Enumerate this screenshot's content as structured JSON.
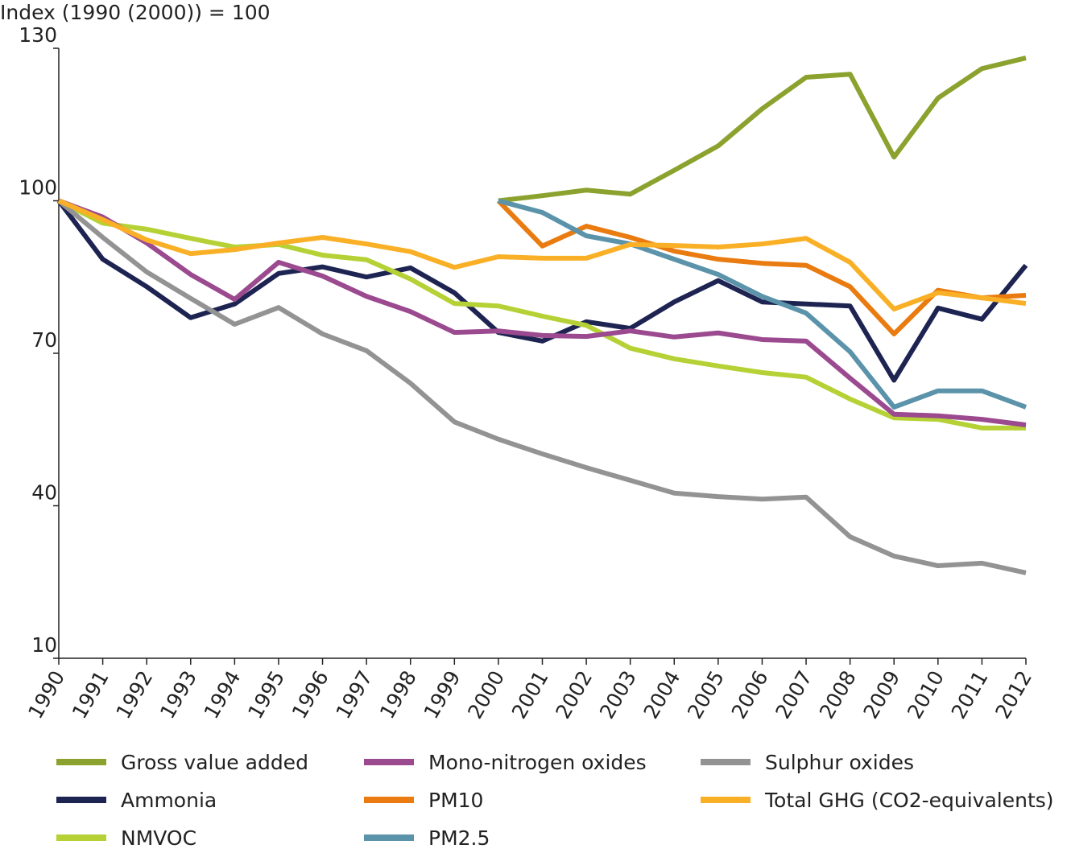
{
  "chart_data": {
    "type": "line",
    "y_label": "Index (1990 (2000)) = 100",
    "x": [
      1990,
      1991,
      1992,
      1993,
      1994,
      1995,
      1996,
      1997,
      1998,
      1999,
      2000,
      2001,
      2002,
      2003,
      2004,
      2005,
      2006,
      2007,
      2008,
      2009,
      2010,
      2011,
      2012
    ],
    "xlim": [
      1990,
      2012
    ],
    "ylim": [
      10,
      130
    ],
    "yticks": [
      10,
      40,
      70,
      100,
      130
    ],
    "series": [
      {
        "name": "Gross value added",
        "color": "#8ca22f",
        "values": [
          null,
          null,
          null,
          null,
          null,
          null,
          null,
          null,
          null,
          null,
          100,
          101,
          102.1,
          101.3,
          106,
          110.8,
          118.1,
          124.3,
          124.9,
          108.6,
          120.2,
          126,
          128.1
        ]
      },
      {
        "name": "Ammonia",
        "color": "#1e2452",
        "values": [
          100,
          88.5,
          83.1,
          77,
          79.7,
          85.7,
          87,
          85,
          86.8,
          81.9,
          74.1,
          72.4,
          76.2,
          74.9,
          80.1,
          84.3,
          80.1,
          79.7,
          79.3,
          64.7,
          78.9,
          76.7,
          87.3
        ]
      },
      {
        "name": "NMVOC",
        "color": "#b5d135",
        "values": [
          100,
          95.6,
          94.4,
          92.6,
          90.9,
          91.4,
          89.3,
          88.4,
          84.6,
          79.8,
          79.3,
          77.3,
          75.5,
          71,
          68.9,
          67.5,
          66.2,
          65.3,
          61,
          57.3,
          57,
          55.3,
          55.3
        ]
      },
      {
        "name": "Mono-nitrogen oxides",
        "color": "#9b4a8f",
        "values": [
          100,
          96.8,
          91.7,
          85.5,
          80.6,
          87.9,
          85.2,
          81.2,
          78.2,
          74.1,
          74.4,
          73.5,
          73.3,
          74.4,
          73.2,
          74,
          72.7,
          72.4,
          65.1,
          58,
          57.7,
          57,
          55.9
        ]
      },
      {
        "name": "PM10",
        "color": "#e97b10",
        "values": [
          null,
          null,
          null,
          null,
          null,
          null,
          null,
          null,
          null,
          null,
          100,
          91.1,
          95,
          92.8,
          90.1,
          88.5,
          87.7,
          87.3,
          83.1,
          73.8,
          82.4,
          80.9,
          81.4
        ]
      },
      {
        "name": "PM2.5",
        "color": "#5b93aa",
        "values": [
          null,
          null,
          null,
          null,
          null,
          null,
          null,
          null,
          null,
          null,
          100,
          97.7,
          93.1,
          91.5,
          88.5,
          85.5,
          81.2,
          77.9,
          70.3,
          59.4,
          62.6,
          62.6,
          59.4
        ]
      },
      {
        "name": "Sulphur oxides",
        "color": "#939393",
        "values": [
          100,
          92.8,
          86,
          80.8,
          75.7,
          79,
          73.8,
          70.5,
          64.1,
          56.5,
          53.1,
          50.2,
          47.5,
          45,
          42.5,
          41.8,
          41.3,
          41.7,
          33.9,
          30.1,
          28.2,
          28.7,
          26.8
        ]
      },
      {
        "name": "Total GHG (CO2-equivalents)",
        "color": "#f9b026",
        "values": [
          100,
          96.3,
          92.3,
          89.6,
          90.4,
          91.7,
          92.8,
          91.5,
          90,
          86.9,
          89,
          88.7,
          88.7,
          91.4,
          91.2,
          90.9,
          91.5,
          92.6,
          87.9,
          78.7,
          81.9,
          80.9,
          79.8
        ]
      }
    ]
  }
}
